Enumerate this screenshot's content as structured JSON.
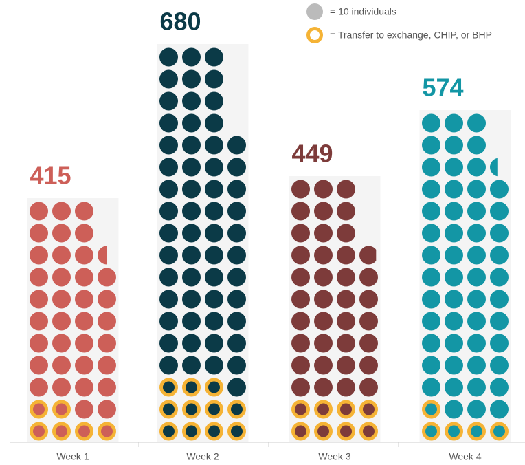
{
  "chart_data": {
    "type": "pictogram",
    "categories": [
      "Week 1",
      "Week 2",
      "Week 3",
      "Week 4"
    ],
    "values": [
      415,
      680,
      449,
      574
    ],
    "transfers": [
      60,
      110,
      80,
      50
    ],
    "colors": [
      "#cd5f58",
      "#0b3a47",
      "#7d3b3a",
      "#1396a5"
    ],
    "transfer_color": "#f5b335",
    "dot_value": 10,
    "legend": {
      "unit": "= 10 individuals",
      "transfer": "= Transfer to exchange, CHIP, or BHP"
    }
  }
}
